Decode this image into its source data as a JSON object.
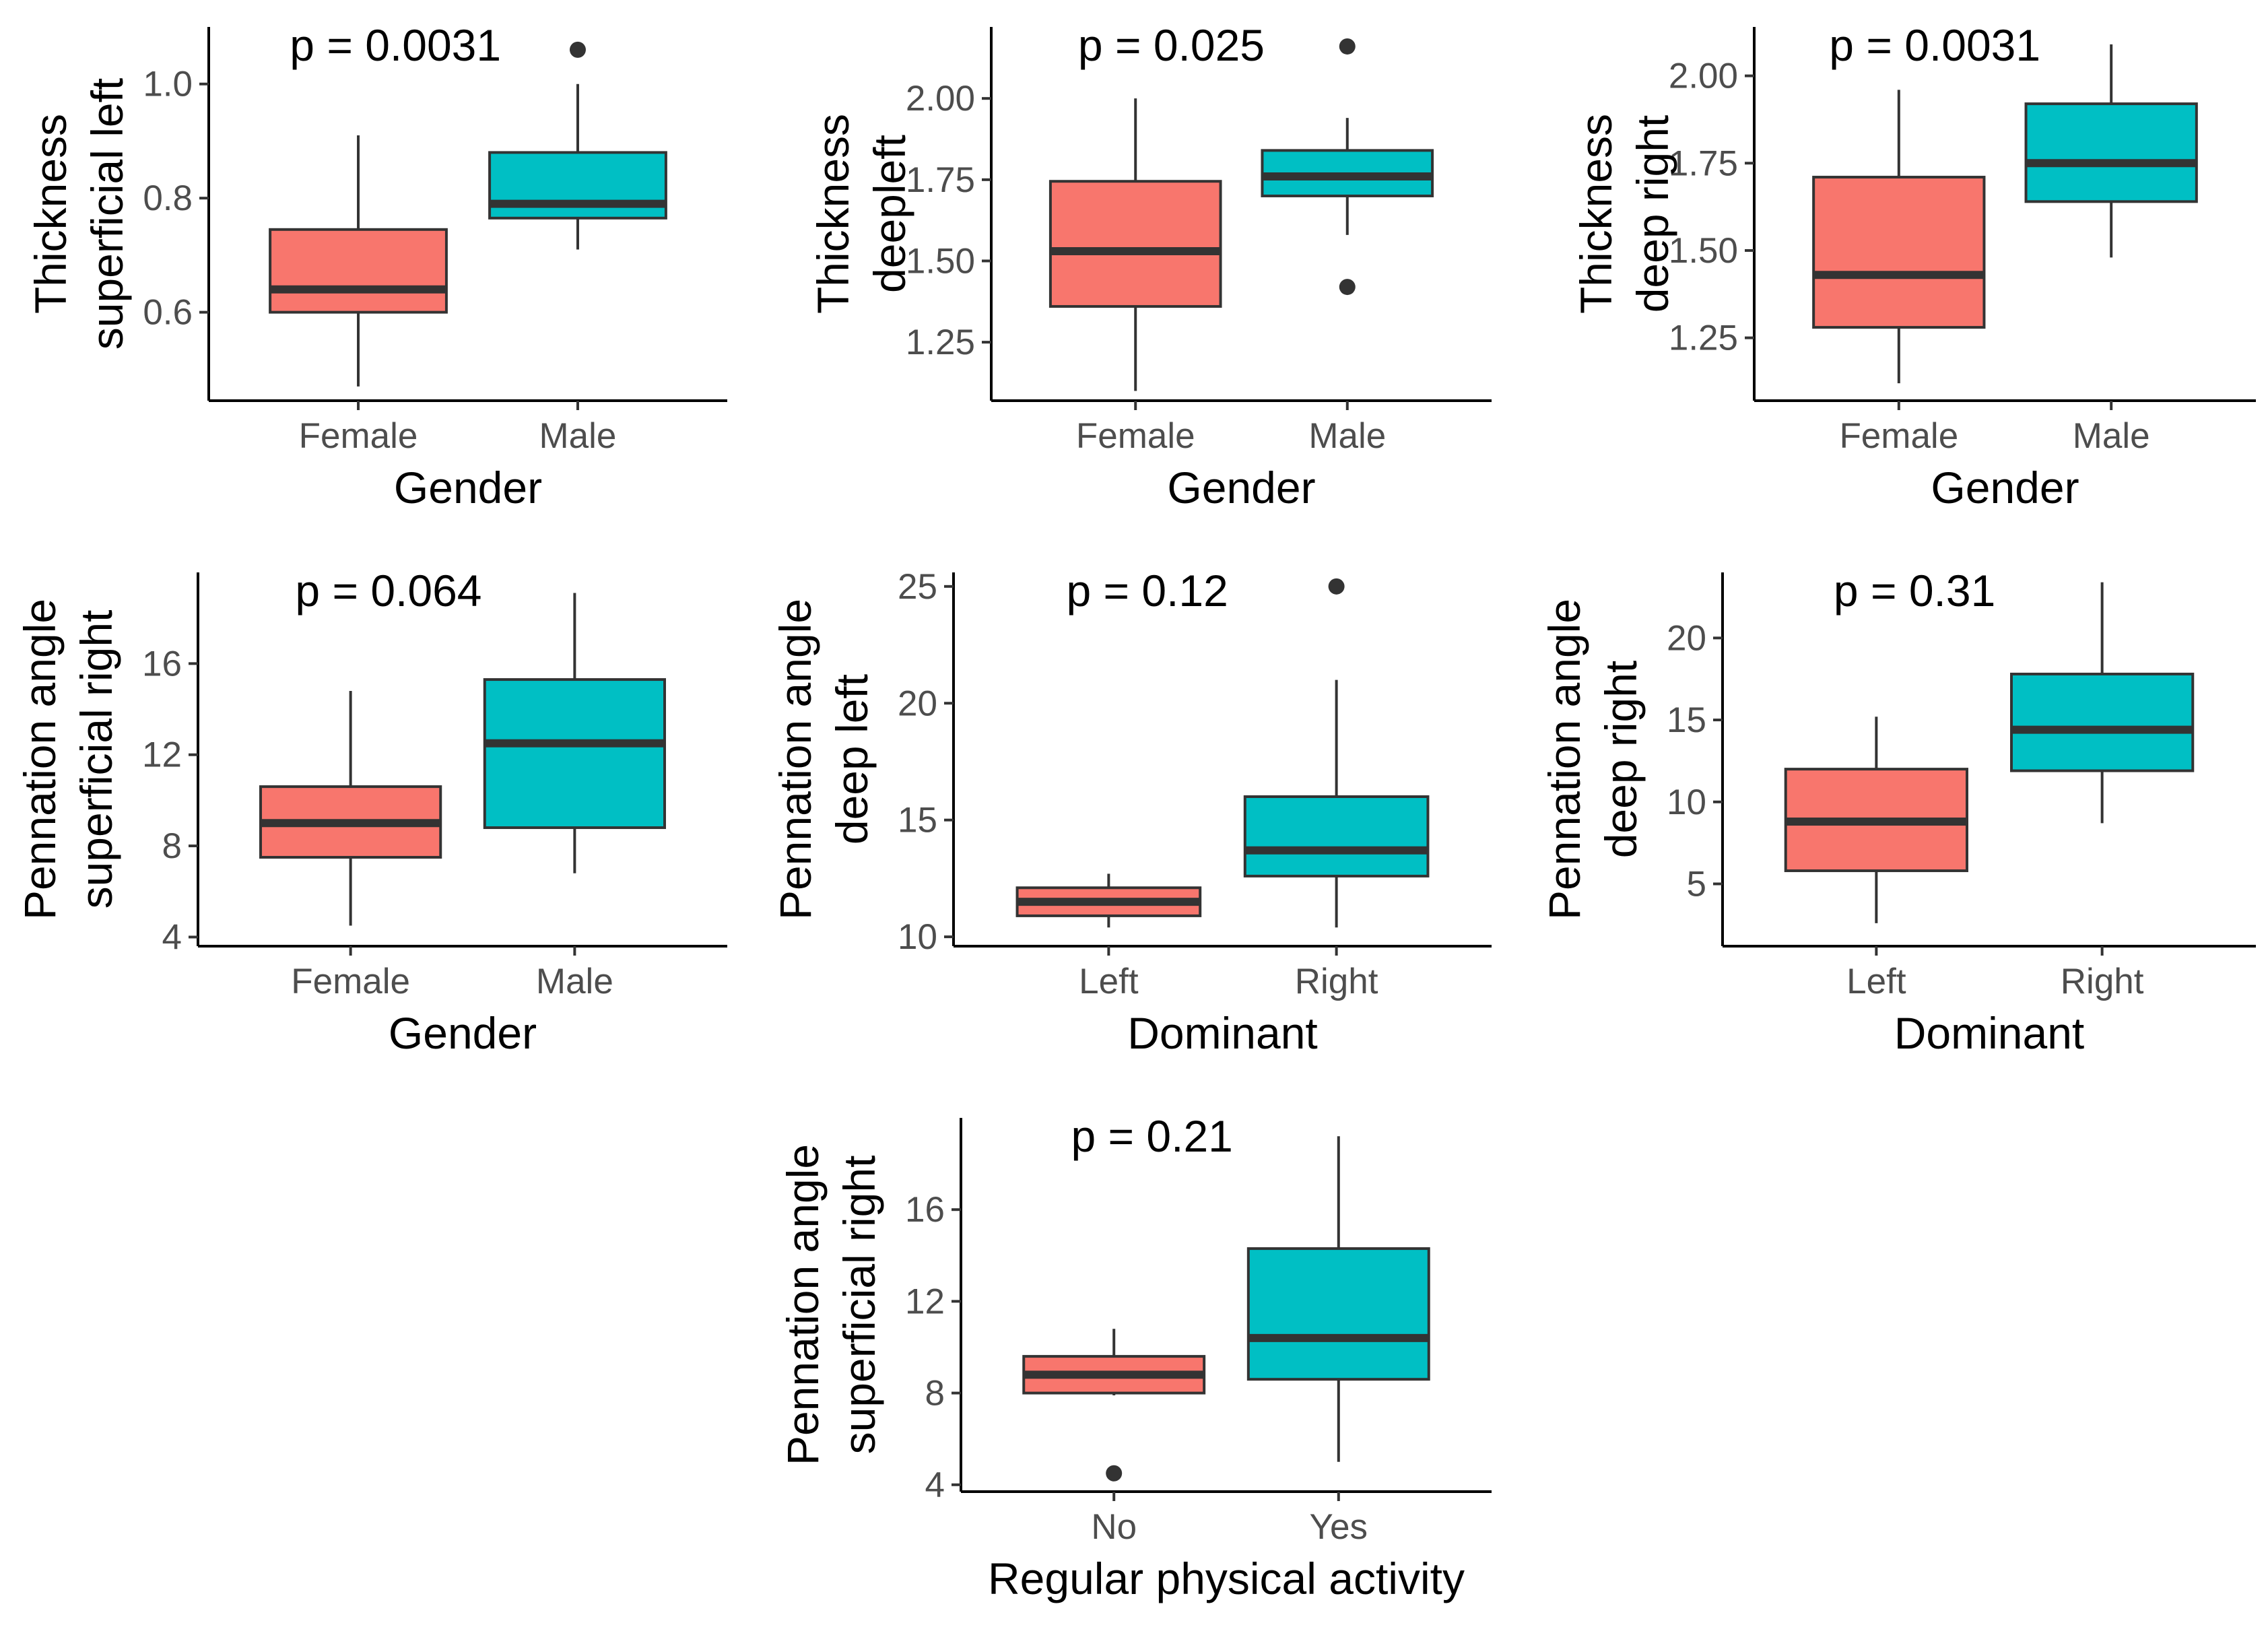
{
  "colors": {
    "group1": "#F8766D",
    "group2": "#00BFC4",
    "line": "#333333"
  },
  "chart_data": [
    {
      "type": "box",
      "title": "",
      "p_label": "p = 0.0031",
      "xlabel": "Gender",
      "ylabel": [
        "Thickness",
        "superficial left"
      ],
      "categories": [
        "Female",
        "Male"
      ],
      "ylim": [
        0.445,
        1.1
      ],
      "yticks": [
        0.6,
        0.8,
        1.0
      ],
      "ytick_labels": [
        "0.6",
        "0.8",
        "1.0"
      ],
      "boxes": [
        {
          "category": "Female",
          "min": 0.47,
          "q1": 0.6,
          "median": 0.64,
          "q3": 0.745,
          "max": 0.91,
          "outliers": []
        },
        {
          "category": "Male",
          "min": 0.71,
          "q1": 0.765,
          "median": 0.79,
          "q3": 0.88,
          "max": 1.0,
          "outliers": [
            1.06
          ]
        }
      ]
    },
    {
      "type": "box",
      "title": "",
      "p_label": "p = 0.025",
      "xlabel": "Gender",
      "ylabel": [
        "Thickness",
        "deepleft"
      ],
      "categories": [
        "Female",
        "Male"
      ],
      "ylim": [
        1.07,
        2.22
      ],
      "yticks": [
        1.25,
        1.5,
        1.75,
        2.0
      ],
      "ytick_labels": [
        "1.25",
        "1.50",
        "1.75",
        "2.00"
      ],
      "boxes": [
        {
          "category": "Female",
          "min": 1.1,
          "q1": 1.36,
          "median": 1.53,
          "q3": 1.745,
          "max": 2.0,
          "outliers": []
        },
        {
          "category": "Male",
          "min": 1.58,
          "q1": 1.7,
          "median": 1.76,
          "q3": 1.84,
          "max": 1.94,
          "outliers": [
            2.16,
            1.42
          ]
        }
      ]
    },
    {
      "type": "box",
      "title": "",
      "p_label": "p = 0.0031",
      "xlabel": "Gender",
      "ylabel": [
        "Thickness",
        "deep right"
      ],
      "categories": [
        "Female",
        "Male"
      ],
      "ylim": [
        1.07,
        2.14
      ],
      "yticks": [
        1.25,
        1.5,
        1.75,
        2.0
      ],
      "ytick_labels": [
        "1.25",
        "1.50",
        "1.75",
        "2.00"
      ],
      "boxes": [
        {
          "category": "Female",
          "min": 1.12,
          "q1": 1.28,
          "median": 1.43,
          "q3": 1.71,
          "max": 1.96,
          "outliers": []
        },
        {
          "category": "Male",
          "min": 1.48,
          "q1": 1.64,
          "median": 1.75,
          "q3": 1.92,
          "max": 2.09,
          "outliers": []
        }
      ]
    },
    {
      "type": "box",
      "title": "",
      "p_label": "p = 0.064",
      "xlabel": "Gender",
      "ylabel": [
        "Pennation angle",
        "superficial right"
      ],
      "categories": [
        "Female",
        "Male"
      ],
      "ylim": [
        3.6,
        20.0
      ],
      "yticks": [
        4,
        8,
        12,
        16
      ],
      "ytick_labels": [
        "4",
        "8",
        "12",
        "16"
      ],
      "boxes": [
        {
          "category": "Female",
          "min": 4.5,
          "q1": 7.5,
          "median": 9.0,
          "q3": 10.6,
          "max": 14.8,
          "outliers": []
        },
        {
          "category": "Male",
          "min": 6.8,
          "q1": 8.8,
          "median": 12.5,
          "q3": 15.3,
          "max": 19.1,
          "outliers": []
        }
      ]
    },
    {
      "type": "box",
      "title": "",
      "p_label": "p = 0.12",
      "xlabel": "Dominant",
      "ylabel": [
        "Pennation angle",
        "deep left"
      ],
      "categories": [
        "Left",
        "Right"
      ],
      "ylim": [
        9.6,
        25.6
      ],
      "yticks": [
        10,
        15,
        20,
        25
      ],
      "ytick_labels": [
        "10",
        "15",
        "20",
        "25"
      ],
      "boxes": [
        {
          "category": "Left",
          "min": 10.4,
          "q1": 10.9,
          "median": 11.5,
          "q3": 12.1,
          "max": 12.7,
          "outliers": []
        },
        {
          "category": "Right",
          "min": 10.4,
          "q1": 12.6,
          "median": 13.7,
          "q3": 16.0,
          "max": 21.0,
          "outliers": [
            25.0
          ]
        }
      ]
    },
    {
      "type": "box",
      "title": "",
      "p_label": "p = 0.31",
      "xlabel": "Dominant",
      "ylabel": [
        "Pennation angle",
        "deep right"
      ],
      "categories": [
        "Left",
        "Right"
      ],
      "ylim": [
        1.2,
        24.0
      ],
      "yticks": [
        5,
        10,
        15,
        20
      ],
      "ytick_labels": [
        "5",
        "10",
        "15",
        "20"
      ],
      "boxes": [
        {
          "category": "Left",
          "min": 2.6,
          "q1": 5.8,
          "median": 8.8,
          "q3": 12.0,
          "max": 15.2,
          "outliers": []
        },
        {
          "category": "Right",
          "min": 8.7,
          "q1": 11.9,
          "median": 14.4,
          "q3": 17.8,
          "max": 23.4,
          "outliers": []
        }
      ]
    },
    {
      "type": "box",
      "title": "",
      "p_label": "p = 0.21",
      "xlabel": "Regular physical activity",
      "ylabel": [
        "Pennation angle",
        "superficial right"
      ],
      "categories": [
        "No",
        "Yes"
      ],
      "ylim": [
        3.7,
        20.0
      ],
      "yticks": [
        4,
        8,
        12,
        16
      ],
      "ytick_labels": [
        "4",
        "8",
        "12",
        "16"
      ],
      "boxes": [
        {
          "category": "No",
          "min": 7.9,
          "q1": 8.0,
          "median": 8.8,
          "q3": 9.6,
          "max": 10.8,
          "outliers": [
            4.5
          ]
        },
        {
          "category": "Yes",
          "min": 5.0,
          "q1": 8.6,
          "median": 10.4,
          "q3": 14.3,
          "max": 19.2,
          "outliers": []
        }
      ]
    }
  ]
}
